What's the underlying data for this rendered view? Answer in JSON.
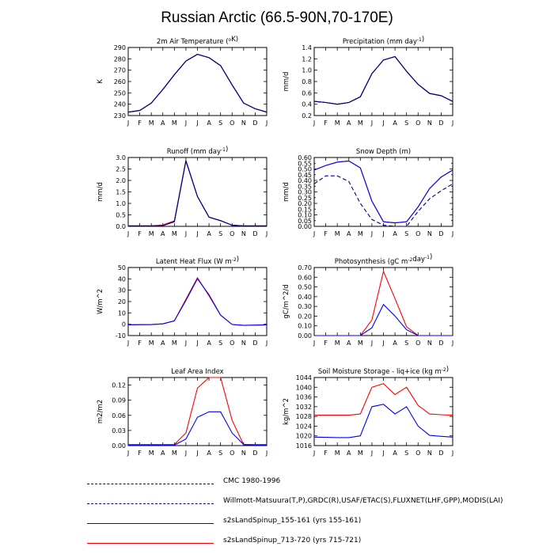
{
  "title": "Russian Arctic (66.5-90N,70-170E)",
  "months": [
    "J",
    "F",
    "M",
    "A",
    "M",
    "J",
    "J",
    "A",
    "S",
    "O",
    "N",
    "D",
    "J"
  ],
  "colors": {
    "obs": "#00007f",
    "run1": "#0000ff",
    "run2": "#ff0000"
  },
  "chart_data": [
    {
      "type": "line",
      "title": "2m Air Temperature (°K)",
      "title_parts": [
        "2m Air Temperature (",
        "o",
        "K)"
      ],
      "ylabel": "K",
      "ylim": [
        230,
        290
      ],
      "yticks": [
        "230",
        "240",
        "250",
        "260",
        "270",
        "280",
        "290"
      ],
      "series": [
        {
          "name": "CMC 1980-1996",
          "values": []
        },
        {
          "name": "Willmott-Matsuura(T,P),GRDC(R),USAF/ETAC(S),FLUXNET(LHF,GPP),MODIS(LAI)",
          "values": [
            233,
            234.5,
            241,
            253,
            266,
            278,
            284,
            281,
            274,
            257,
            241,
            236,
            233
          ]
        },
        {
          "name": "s2sLandSpinup_155-161 (yrs 155-161)",
          "values": [
            233,
            234.5,
            241,
            253,
            266,
            278,
            284,
            281,
            274,
            257,
            241,
            236,
            233
          ]
        },
        {
          "name": "s2sLandSpinup_713-720 (yrs 715-721)",
          "values": [
            233,
            234.5,
            241,
            253,
            266,
            278,
            284,
            281,
            274,
            257,
            241,
            236,
            233
          ]
        }
      ]
    },
    {
      "type": "line",
      "title": "Precipitation (mm day-1)",
      "title_parts": [
        "Precipitation (mm day",
        "-1",
        ")"
      ],
      "ylabel": "mm/d",
      "ylim": [
        0.2,
        1.4
      ],
      "yticks": [
        "0.2",
        "0.4",
        "0.6",
        "0.8",
        "1.0",
        "1.2",
        "1.4"
      ],
      "series": [
        {
          "name": "CMC 1980-1996",
          "values": []
        },
        {
          "name": "Willmott-Matsuura(T,P),GRDC(R),USAF/ETAC(S),FLUXNET(LHF,GPP),MODIS(LAI)",
          "values": [
            0.45,
            0.43,
            0.4,
            0.43,
            0.53,
            0.94,
            1.18,
            1.24,
            0.98,
            0.75,
            0.59,
            0.55,
            0.45
          ]
        },
        {
          "name": "s2sLandSpinup_155-161 (yrs 155-161)",
          "values": [
            0.45,
            0.43,
            0.4,
            0.43,
            0.53,
            0.94,
            1.18,
            1.24,
            0.98,
            0.75,
            0.59,
            0.55,
            0.45
          ]
        },
        {
          "name": "s2sLandSpinup_713-720 (yrs 715-721)",
          "values": [
            0.45,
            0.43,
            0.4,
            0.43,
            0.53,
            0.94,
            1.18,
            1.24,
            0.98,
            0.75,
            0.59,
            0.55,
            0.45
          ]
        }
      ]
    },
    {
      "type": "line",
      "title": "Runoff (mm day-1)",
      "title_parts": [
        "Runoff (mm day",
        "-1",
        ")"
      ],
      "ylabel": "mm/d",
      "ylim": [
        0.0,
        3.0
      ],
      "yticks": [
        "0.0",
        "0.5",
        "1.0",
        "1.5",
        "2.0",
        "2.5",
        "3.0"
      ],
      "series": [
        {
          "name": "CMC 1980-1996",
          "values": []
        },
        {
          "name": "Willmott-Matsuura(T,P),GRDC(R),USAF/ETAC(S),FLUXNET(LHF,GPP),MODIS(LAI)",
          "values": [
            0.02,
            0.02,
            0.02,
            0.03,
            0.2,
            2.85,
            1.3,
            0.4,
            0.25,
            0.05,
            0.02,
            0.02,
            0.02
          ]
        },
        {
          "name": "s2sLandSpinup_155-161 (yrs 155-161)",
          "values": [
            0.02,
            0.02,
            0.02,
            0.03,
            0.2,
            2.85,
            1.3,
            0.4,
            0.25,
            0.05,
            0.02,
            0.02,
            0.02
          ]
        },
        {
          "name": "s2sLandSpinup_713-720 (yrs 715-721)",
          "values": [
            0.02,
            0.02,
            0.02,
            0.06,
            0.24,
            2.88,
            1.3,
            0.4,
            0.25,
            0.05,
            0.02,
            0.02,
            0.02
          ]
        }
      ]
    },
    {
      "type": "line",
      "title": "Snow Depth (m)",
      "title_parts": [
        "Snow Depth (m)"
      ],
      "ylabel": "mm/d",
      "ylim": [
        0.0,
        0.6
      ],
      "yticks": [
        "0.00",
        "0.05",
        "0.10",
        "0.15",
        "0.20",
        "0.25",
        "0.30",
        "0.35",
        "0.40",
        "0.45",
        "0.50",
        "0.55",
        "0.60"
      ],
      "series": [
        {
          "name": "CMC 1980-1996",
          "values": [
            0.37,
            0.44,
            0.44,
            0.39,
            0.2,
            0.06,
            0.01,
            0.0,
            0.0,
            0.13,
            0.24,
            0.31,
            0.37
          ]
        },
        {
          "name": "Willmott-Matsuura(T,P),GRDC(R),USAF/ETAC(S),FLUXNET(LHF,GPP),MODIS(LAI)",
          "values": []
        },
        {
          "name": "s2sLandSpinup_155-161 (yrs 155-161)",
          "values": [
            0.49,
            0.53,
            0.56,
            0.57,
            0.51,
            0.22,
            0.04,
            0.03,
            0.04,
            0.17,
            0.33,
            0.43,
            0.49
          ]
        },
        {
          "name": "s2sLandSpinup_713-720 (yrs 715-721)",
          "values": [
            0.49,
            0.53,
            0.56,
            0.57,
            0.51,
            0.22,
            0.04,
            0.03,
            0.04,
            0.17,
            0.33,
            0.43,
            0.49
          ]
        }
      ]
    },
    {
      "type": "line",
      "title": "Latent Heat Flux (W m-2)",
      "title_parts": [
        "Latent Heat Flux (W m",
        "-2",
        ")"
      ],
      "ylabel": "W/m^2",
      "ylim": [
        -10,
        50
      ],
      "yticks": [
        "-10",
        "0",
        "10",
        "20",
        "30",
        "40",
        "50"
      ],
      "series": [
        {
          "name": "CMC 1980-1996",
          "values": []
        },
        {
          "name": "Willmott-Matsuura(T,P),GRDC(R),USAF/ETAC(S),FLUXNET(LHF,GPP),MODIS(LAI)",
          "values": []
        },
        {
          "name": "s2sLandSpinup_155-161 (yrs 155-161)",
          "values": [
            -0.5,
            -0.4,
            -0.3,
            0.3,
            3,
            21,
            40,
            26,
            8,
            -0.2,
            -1,
            -0.8,
            -0.5
          ]
        },
        {
          "name": "s2sLandSpinup_713-720 (yrs 715-721)",
          "values": [
            -0.5,
            -0.4,
            -0.3,
            0.3,
            3,
            22,
            41,
            25,
            8,
            -0.2,
            -1,
            -0.8,
            -0.5
          ]
        }
      ]
    },
    {
      "type": "line",
      "title": "Photosynthesis (gC m-2day-1)",
      "title_parts": [
        "Photosynthesis (gC m",
        "-2",
        "day",
        "-1",
        ")"
      ],
      "ylabel": "gC/m^2/d",
      "ylim": [
        0.0,
        0.7
      ],
      "yticks": [
        "0.00",
        "0.10",
        "0.20",
        "0.30",
        "0.40",
        "0.50",
        "0.60",
        "0.70"
      ],
      "series": [
        {
          "name": "CMC 1980-1996",
          "values": []
        },
        {
          "name": "Willmott-Matsuura(T,P),GRDC(R),USAF/ETAC(S),FLUXNET(LHF,GPP),MODIS(LAI)",
          "values": []
        },
        {
          "name": "s2sLandSpinup_155-161 (yrs 155-161)",
          "values": [
            0,
            0,
            0,
            0,
            0,
            0.08,
            0.32,
            0.2,
            0.06,
            0,
            0,
            0,
            0
          ]
        },
        {
          "name": "s2sLandSpinup_713-720 (yrs 715-721)",
          "values": [
            0,
            0,
            0,
            0,
            0,
            0.16,
            0.66,
            0.38,
            0.09,
            0,
            0,
            0,
            0
          ]
        }
      ]
    },
    {
      "type": "line",
      "title": "Leaf Area Index",
      "title_parts": [
        "Leaf Area Index"
      ],
      "ylabel": "m2/m2",
      "ylim": [
        0.0,
        0.135
      ],
      "yticks": [
        "0.00",
        "0.03",
        "0.06",
        "0.09",
        "0.12"
      ],
      "ytick_values": [
        0,
        0.03,
        0.06,
        0.09,
        0.12
      ],
      "series": [
        {
          "name": "CMC 1980-1996",
          "values": []
        },
        {
          "name": "Willmott-Matsuura(T,P),GRDC(R),USAF/ETAC(S),FLUXNET(LHF,GPP),MODIS(LAI)",
          "values": []
        },
        {
          "name": "s2sLandSpinup_155-161 (yrs 155-161)",
          "values": [
            0.001,
            0.001,
            0.001,
            0.001,
            0.001,
            0.013,
            0.056,
            0.067,
            0.067,
            0.025,
            0.002,
            0.001,
            0.001
          ]
        },
        {
          "name": "s2sLandSpinup_713-720 (yrs 715-721)",
          "values": [
            0.002,
            0.002,
            0.002,
            0.002,
            0.002,
            0.025,
            0.114,
            0.135,
            0.135,
            0.05,
            0.002,
            0.002,
            0.002
          ]
        }
      ]
    },
    {
      "type": "line",
      "title": "Soil Moisture Storage - liq+ice (kg m-2)",
      "title_parts": [
        "Soil Moisture Storage - liq+ice (kg m",
        "-2",
        ")"
      ],
      "ylabel": "kg/m^2",
      "ylim": [
        1016,
        1044
      ],
      "yticks": [
        "1016",
        "1020",
        "1024",
        "1028",
        "1032",
        "1036",
        "1040",
        "1044"
      ],
      "series": [
        {
          "name": "CMC 1980-1996",
          "values": []
        },
        {
          "name": "Willmott-Matsuura(T,P),GRDC(R),USAF/ETAC(S),FLUXNET(LHF,GPP),MODIS(LAI)",
          "values": []
        },
        {
          "name": "s2sLandSpinup_155-161 (yrs 155-161)",
          "values": [
            1019.5,
            1019.4,
            1019.3,
            1019.3,
            1020,
            1032,
            1033,
            1029,
            1032,
            1024,
            1020.2,
            1019.8,
            1019.5
          ]
        },
        {
          "name": "s2sLandSpinup_713-720 (yrs 715-721)",
          "values": [
            1028.5,
            1028.5,
            1028.5,
            1028.5,
            1029,
            1040,
            1041.5,
            1037,
            1040,
            1032.5,
            1029,
            1028.7,
            1028.5
          ]
        }
      ]
    }
  ],
  "legend": [
    {
      "label": "CMC 1980-1996",
      "color": "#00007f",
      "style": "dashed"
    },
    {
      "label": "Willmott-Matsuura(T,P),GRDC(R),USAF/ETAC(S),FLUXNET(LHF,GPP),MODIS(LAI)",
      "color": "#00007f",
      "style": "dashed"
    },
    {
      "label": "s2sLandSpinup_155-161 (yrs 155-161)",
      "color": "#0000ff",
      "style": "solid"
    },
    {
      "label": "s2sLandSpinup_713-720 (yrs 715-721)",
      "color": "#ff0000",
      "style": "solid"
    }
  ]
}
